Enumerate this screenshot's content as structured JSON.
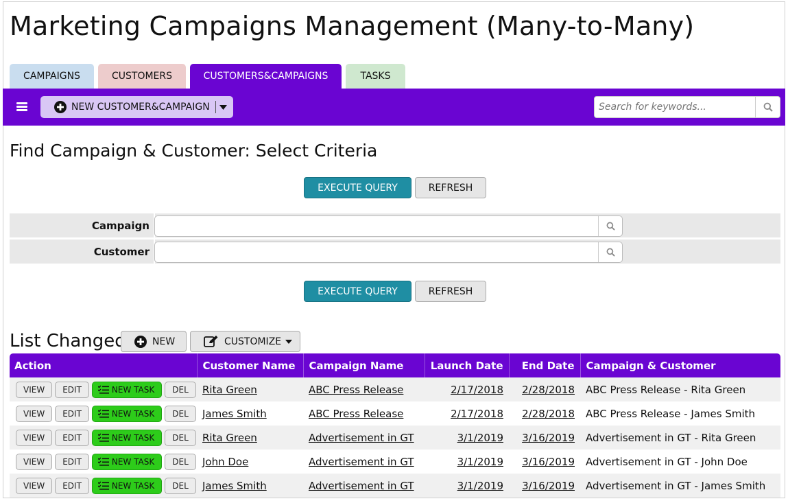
{
  "title": "Marketing Campaigns Management (Many-to-Many)",
  "tabs": [
    {
      "label": "CAMPAIGNS",
      "bg": "#c9ddef",
      "active": false
    },
    {
      "label": "CUSTOMERS",
      "bg": "#edcccc",
      "active": false
    },
    {
      "label": "CUSTOMERS&CAMPAIGNS",
      "bg": "#6a05d2",
      "active": true
    },
    {
      "label": "TASKS",
      "bg": "#cfe8cf",
      "active": false
    }
  ],
  "toolbar": {
    "new_label": "NEW CUSTOMER&CAMPAIGN",
    "search_placeholder": "Search for keywords...",
    "accent": "#6a05d2"
  },
  "find": {
    "title": "Find Campaign & Customer: Select Criteria",
    "execute_label": "EXECUTE QUERY",
    "refresh_label": "REFRESH",
    "criteria": [
      {
        "label": "Campaign",
        "value": ""
      },
      {
        "label": "Customer",
        "value": ""
      }
    ]
  },
  "list": {
    "title": "List Changed",
    "new_label": "NEW",
    "customize_label": "CUSTOMIZE",
    "columns": [
      "Action",
      "Customer Name",
      "Campaign Name",
      "Launch Date",
      "End Date",
      "Campaign & Customer"
    ],
    "action_labels": {
      "view": "VIEW",
      "edit": "EDIT",
      "new_task": "NEW TASK",
      "del": "DEL"
    },
    "rows": [
      {
        "customer": "Rita Green",
        "campaign": "ABC Press Release",
        "launch": "2/17/2018",
        "end": "2/28/2018",
        "combo": "ABC Press Release - Rita Green"
      },
      {
        "customer": "James Smith",
        "campaign": "ABC Press Release",
        "launch": "2/17/2018",
        "end": "2/28/2018",
        "combo": "ABC Press Release - James Smith"
      },
      {
        "customer": "Rita Green",
        "campaign": "Advertisement in GT",
        "launch": "3/1/2019",
        "end": "3/16/2019",
        "combo": "Advertisement in GT - Rita Green"
      },
      {
        "customer": "John Doe",
        "campaign": "Advertisement in GT",
        "launch": "3/1/2019",
        "end": "3/16/2019",
        "combo": "Advertisement in GT - John Doe"
      },
      {
        "customer": "James Smith",
        "campaign": "Advertisement in GT",
        "launch": "3/1/2019",
        "end": "3/16/2019",
        "combo": "Advertisement in GT - James Smith"
      }
    ]
  },
  "icons": {
    "menu": "hamburger-icon",
    "add": "plus-circle-icon",
    "dropdown": "caret-down-icon",
    "search": "search-icon",
    "lookup": "search-icon",
    "customize": "edit-icon",
    "task": "task-list-icon"
  }
}
